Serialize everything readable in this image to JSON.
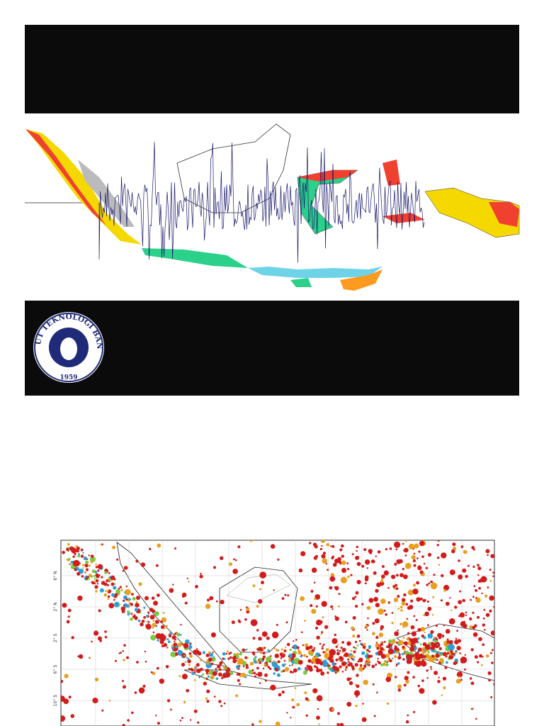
{
  "logo": {
    "text": "INSTITUT TEKNOLOGI BANDUNG",
    "year": "1959"
  },
  "map": {
    "latitude_labels": [
      "6° N",
      "2° N",
      "2° S",
      "6° S",
      "10° S"
    ]
  }
}
